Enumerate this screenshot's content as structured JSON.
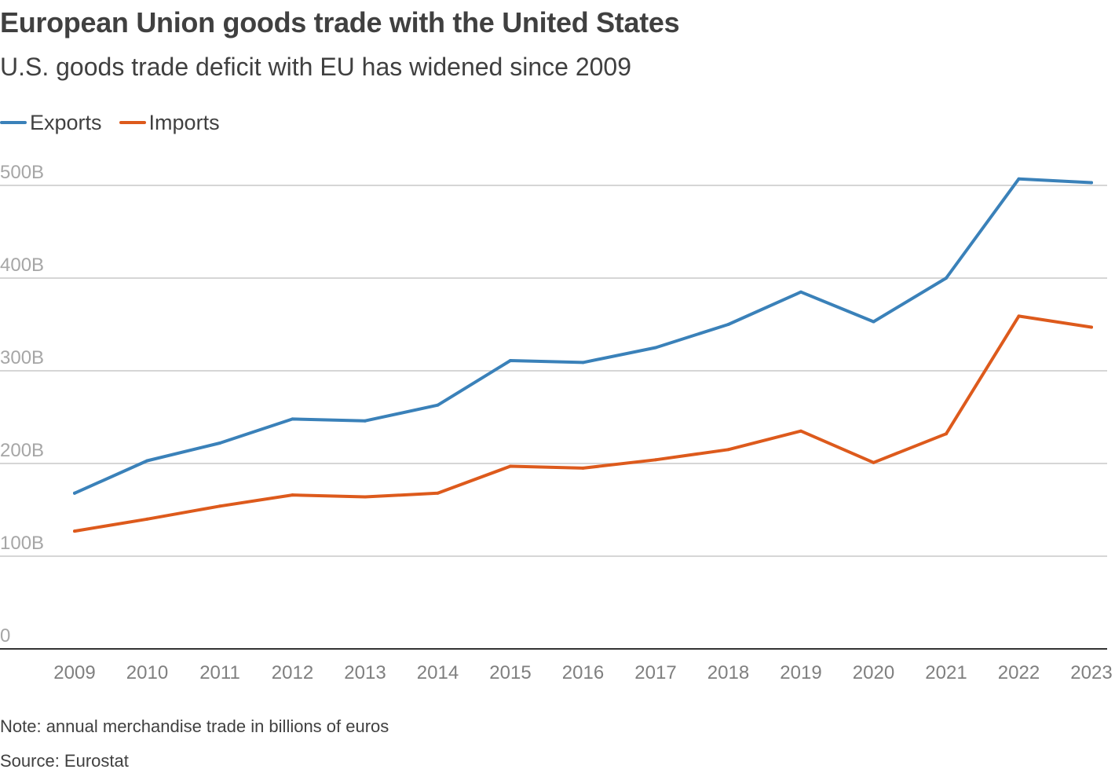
{
  "chart_data": {
    "type": "line",
    "title": "European Union goods trade with the United States",
    "subtitle": "U.S. goods trade deficit with EU has widened since 2009",
    "x": [
      "2009",
      "2010",
      "2011",
      "2012",
      "2013",
      "2014",
      "2015",
      "2016",
      "2017",
      "2018",
      "2019",
      "2020",
      "2021",
      "2022",
      "2023"
    ],
    "series": [
      {
        "name": "Exports",
        "color": "#3a81b9",
        "values": [
          168,
          203,
          222,
          248,
          246,
          263,
          311,
          309,
          325,
          350,
          385,
          353,
          400,
          507,
          503
        ]
      },
      {
        "name": "Imports",
        "color": "#dd5a1c",
        "values": [
          127,
          140,
          154,
          166,
          164,
          168,
          197,
          195,
          204,
          215,
          235,
          201,
          232,
          359,
          347
        ]
      }
    ],
    "yticks": [
      {
        "value": 0,
        "label": "0"
      },
      {
        "value": 100,
        "label": "100B"
      },
      {
        "value": 200,
        "label": "200B"
      },
      {
        "value": 300,
        "label": "300B"
      },
      {
        "value": 400,
        "label": "400B"
      },
      {
        "value": 500,
        "label": "500B"
      }
    ],
    "ylim": [
      0,
      500
    ],
    "grid": true,
    "legend_position": "top-left",
    "xlabel": "",
    "ylabel": ""
  },
  "footer": {
    "note": "Note: annual merchandise trade in billions of euros",
    "source": "Source: Eurostat"
  }
}
